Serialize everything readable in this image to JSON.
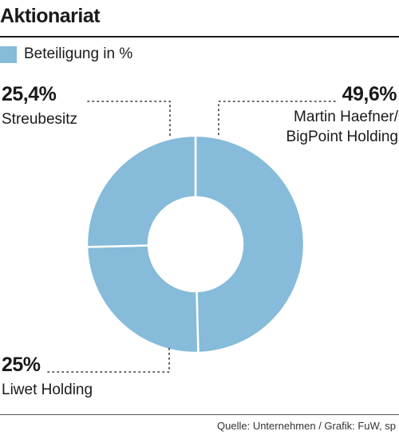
{
  "title": "Aktionariat",
  "source": "Quelle: Unternehmen / Grafik: FuW, sp",
  "chart_data": {
    "type": "pie",
    "donut": true,
    "legend": [
      {
        "label": "Beteiligung in %",
        "color": "#86bbd9"
      }
    ],
    "slices": [
      {
        "pct_label": "49,6%",
        "label_lines": [
          "Martin Haefner/",
          "BigPoint Holding"
        ],
        "value": 49.6,
        "color": "#86bbd9"
      },
      {
        "pct_label": "25%",
        "label_lines": [
          "Liwet Holding"
        ],
        "value": 25,
        "color": "#86bbd9"
      },
      {
        "pct_label": "25,4%",
        "label_lines": [
          "Streubesitz"
        ],
        "value": 25.4,
        "color": "#86bbd9"
      }
    ]
  }
}
